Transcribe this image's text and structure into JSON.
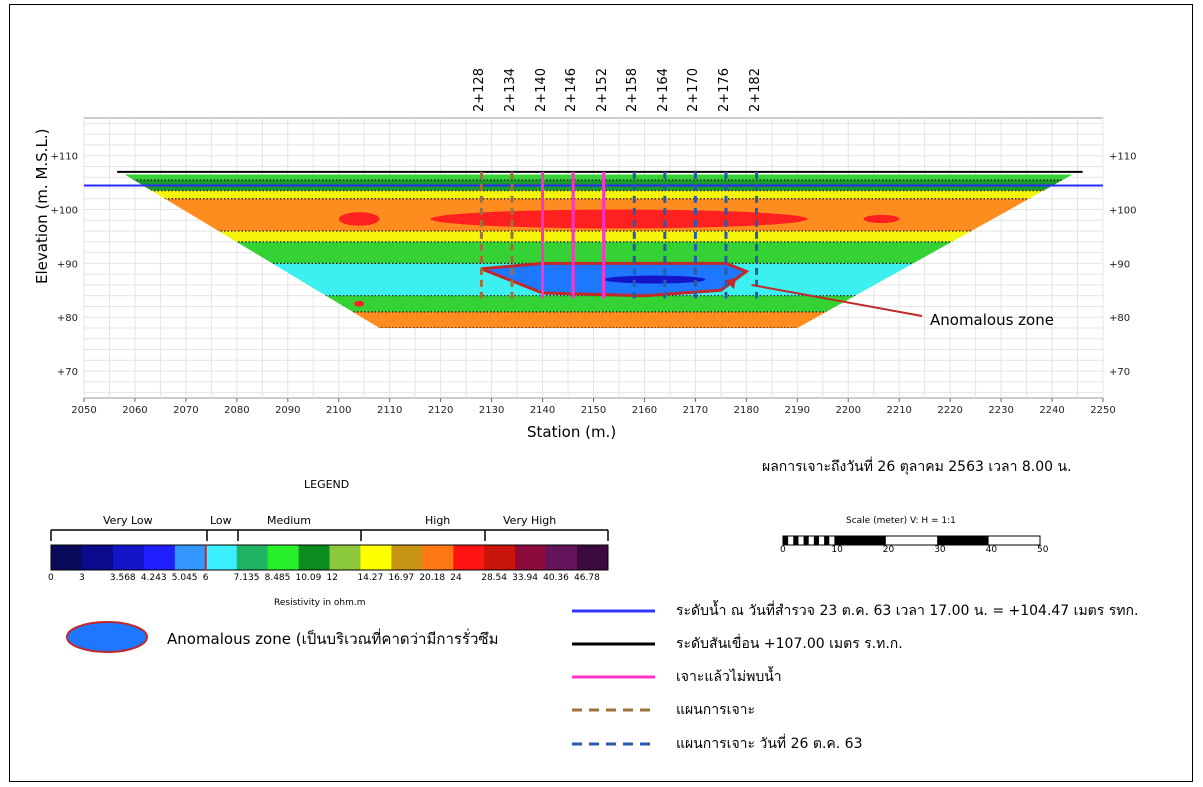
{
  "chart_data": {
    "type": "heatmap",
    "xlabel": "Station (m.)",
    "ylabel": "Elevation (m. M.S.L.)",
    "xlim": [
      2050,
      2250
    ],
    "ylim": [
      65,
      117
    ],
    "x_ticks": [
      "2050",
      "2060",
      "2070",
      "2080",
      "2090",
      "2100",
      "2110",
      "2120",
      "2130",
      "2140",
      "2150",
      "2160",
      "2170",
      "2180",
      "2190",
      "2200",
      "2210",
      "2220",
      "2230",
      "2240",
      "2250"
    ],
    "y_ticks": [
      "+70",
      "+80",
      "+90",
      "+100",
      "+110"
    ],
    "grid": true,
    "dam_crest_elevation": 107.0,
    "water_level_elevation": 104.47,
    "section_outline": [
      [
        2058,
        106.5
      ],
      [
        2108,
        78
      ],
      [
        2190,
        78
      ],
      [
        2244,
        106.5
      ]
    ],
    "resistivity_layers": [
      {
        "top": 107,
        "bottom": 105.5,
        "class": "green"
      },
      {
        "top": 105.5,
        "bottom": 103.5,
        "class": "dark-green"
      },
      {
        "top": 103.5,
        "bottom": 102,
        "class": "yellow"
      },
      {
        "top": 102,
        "bottom": 96,
        "class": "orange"
      },
      {
        "top": 96,
        "bottom": 94,
        "class": "yellow"
      },
      {
        "top": 94,
        "bottom": 90,
        "class": "green"
      },
      {
        "top": 90,
        "bottom": 84,
        "class": "cyan"
      },
      {
        "top": 84,
        "bottom": 81,
        "class": "green"
      },
      {
        "top": 81,
        "bottom": 78,
        "class": "orange"
      }
    ],
    "high_resistivity_zones": [
      {
        "x": [
          2100,
          2108
        ],
        "y": [
          97,
          99.5
        ]
      },
      {
        "x": [
          2118,
          2192
        ],
        "y": [
          96.5,
          100
        ]
      },
      {
        "x": [
          2203,
          2210
        ],
        "y": [
          97.5,
          99
        ]
      }
    ],
    "anomalous_zone": {
      "x": [
        2128,
        2180
      ],
      "y": [
        84,
        90
      ],
      "core_x": [
        2152,
        2172
      ],
      "core_y": [
        86,
        88
      ]
    },
    "boreholes": [
      {
        "station": "2+128",
        "x": 2128,
        "type": "planned"
      },
      {
        "station": "2+134",
        "x": 2134,
        "type": "planned"
      },
      {
        "station": "2+140",
        "x": 2140,
        "type": "drilled-no-water"
      },
      {
        "station": "2+146",
        "x": 2146,
        "type": "drilled-no-water"
      },
      {
        "station": "2+152",
        "x": 2152,
        "type": "drilled-no-water"
      },
      {
        "station": "2+158",
        "x": 2158,
        "type": "planned-26"
      },
      {
        "station": "2+164",
        "x": 2164,
        "type": "planned-26"
      },
      {
        "station": "2+170",
        "x": 2170,
        "type": "planned-26"
      },
      {
        "station": "2+176",
        "x": 2176,
        "type": "planned-26"
      },
      {
        "station": "2+182",
        "x": 2182,
        "type": "planned-26"
      }
    ],
    "anomaly_annotation": "Anomalous zone",
    "drill_note": "ผลการเจาะถึงวันที่ 26 ตุลาคม 2563 เวลา 8.00 น."
  },
  "legend": {
    "title": "LEGEND",
    "classes": [
      "Very Low",
      "Low",
      "Medium",
      "High",
      "Very High"
    ],
    "colors": [
      "#0a0a5a",
      "#0a0a8c",
      "#1414c8",
      "#1e1eff",
      "#3296ff",
      "#3cf0ff",
      "#1eb464",
      "#28f028",
      "#0a8c1e",
      "#8cc83c",
      "#ffff00",
      "#c89614",
      "#ff7814",
      "#ff1414",
      "#c8140a",
      "#8c0a3c",
      "#64145a",
      "#3c0a3c"
    ],
    "values": [
      "0",
      "3",
      "3.568",
      "4.243",
      "5.045",
      "6",
      "7.135",
      "8.485",
      "10.09",
      "12",
      "14.27",
      "16.97",
      "20.18",
      "24",
      "28.54",
      "33.94",
      "40.36",
      "46.78"
    ],
    "unit_label": "Resistivity in ohm.m",
    "anomalous_label": "Anomalous zone (เป็นบริเวณที่คาดว่ามีการรั่วซึม"
  },
  "scale_bar": {
    "title": "Scale (meter)  V: H  =  1:1",
    "labels": [
      "0",
      "10",
      "20",
      "30",
      "40",
      "50"
    ]
  },
  "line_key": [
    {
      "style": "solid",
      "color": "#3333ff",
      "label": "ระดับน้ำ ณ วันที่สำรวจ 23 ต.ค. 63 เวลา 17.00 น. = +104.47 เมตร รทก."
    },
    {
      "style": "solid",
      "color": "#000000",
      "label": "ระดับสันเขื่อน +107.00 เมตร ร.ท.ก."
    },
    {
      "style": "solid",
      "color": "#ff33cc",
      "label": "เจาะแล้วไม่พบน้ำ"
    },
    {
      "style": "dashed",
      "color": "#a0703c",
      "label": "แผนการเจาะ"
    },
    {
      "style": "dashed",
      "color": "#2a5aa8",
      "label": "แผนการเจาะ วันที่ 26 ต.ค. 63"
    }
  ]
}
